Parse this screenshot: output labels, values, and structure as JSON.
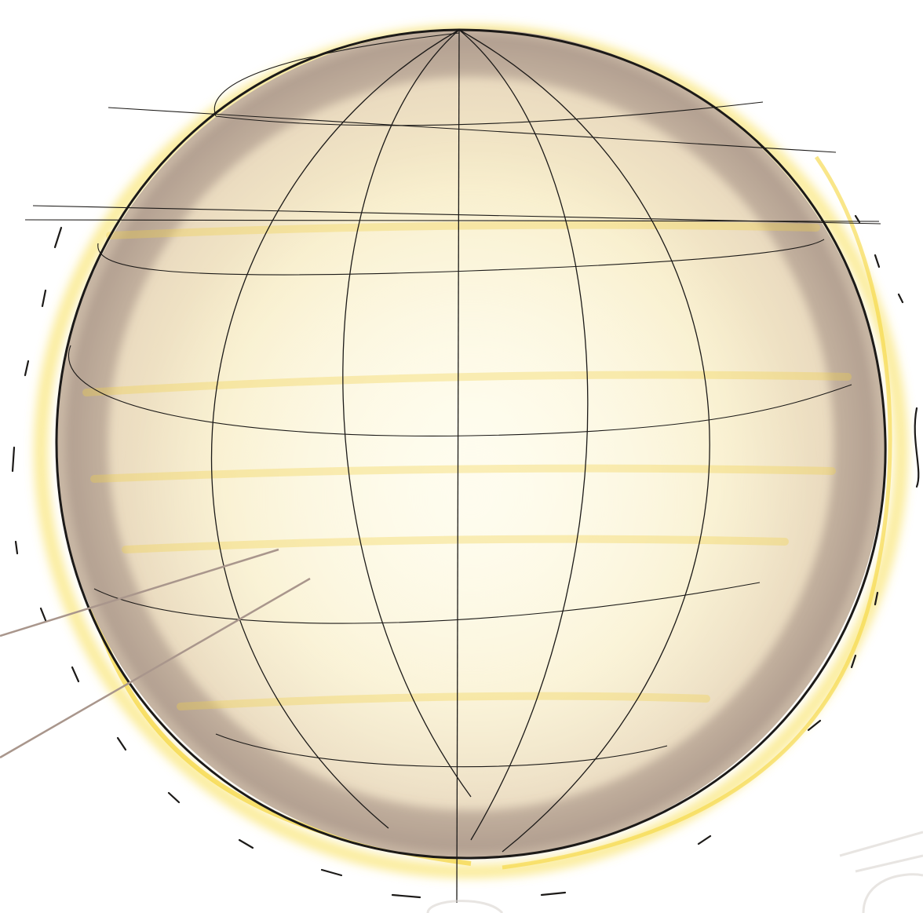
{
  "image": {
    "subject": "sphere-sketch",
    "colors": {
      "paper": "#ffffff",
      "sphere_fill_light": "#fdf6d8",
      "sphere_fill_mid": "#f1e6c4",
      "shadow_rim": "#9e8c80",
      "yellow_glow": "#f7dc4a",
      "ink": "#1c1a18",
      "pointer": "#a9968c"
    }
  }
}
